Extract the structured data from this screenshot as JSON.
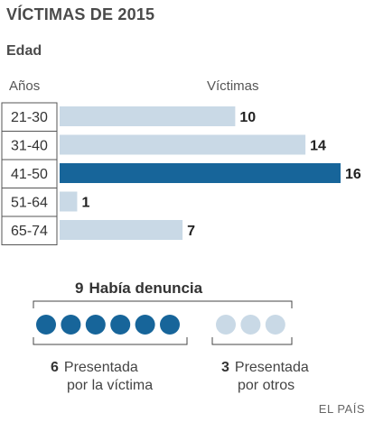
{
  "header": {
    "title": "VÍCTIMAS DE 2015",
    "subtitle": "Edad",
    "col_years": "Años",
    "col_victims": "Víctimas"
  },
  "colors": {
    "bar": "#c9d9e6",
    "bar_highlight": "#17659a",
    "dot_own": "#17659a",
    "dot_other": "#c9d9e6"
  },
  "chart_data": {
    "type": "bar",
    "orientation": "horizontal",
    "title": "VÍCTIMAS DE 2015",
    "subtitle": "Edad",
    "xlabel": "Víctimas",
    "ylabel": "Años",
    "categories": [
      "21-30",
      "31-40",
      "41-50",
      "51-64",
      "65-74"
    ],
    "values": [
      10,
      14,
      16,
      1,
      7
    ],
    "highlight": "41-50",
    "xlim": [
      0,
      16
    ]
  },
  "denuncia": {
    "total": "9",
    "label": "Había denuncia",
    "own": {
      "count": 6,
      "num": "6",
      "line1": "Presentada",
      "line2": "por la víctima"
    },
    "other": {
      "count": 3,
      "num": "3",
      "line1": "Presentada",
      "line2": "por otros"
    }
  },
  "source": "EL PAÍS"
}
